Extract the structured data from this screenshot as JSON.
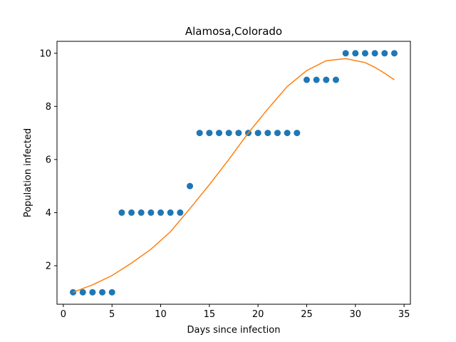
{
  "chart_data": {
    "type": "scatter",
    "title": "Alamosa,Colorado",
    "xlabel": "Days since infection",
    "ylabel": "Population infected",
    "xlim": [
      -0.65,
      35.65
    ],
    "ylim": [
      0.55,
      10.45
    ],
    "xticks": [
      0,
      5,
      10,
      15,
      20,
      25,
      30,
      35
    ],
    "yticks": [
      2,
      4,
      6,
      8,
      10
    ],
    "grid": false,
    "legend": "none",
    "series": [
      {
        "kind": "scatter",
        "color": "#1f77b4",
        "x": [
          1,
          2,
          3,
          4,
          5,
          6,
          7,
          8,
          9,
          10,
          11,
          12,
          13,
          14,
          15,
          16,
          17,
          18,
          19,
          20,
          21,
          22,
          23,
          24,
          25,
          26,
          27,
          28,
          29,
          30,
          31,
          32,
          33,
          34
        ],
        "y": [
          1,
          1,
          1,
          1,
          1,
          4,
          4,
          4,
          4,
          4,
          4,
          4,
          5,
          7,
          7,
          7,
          7,
          7,
          7,
          7,
          7,
          7,
          7,
          7,
          9,
          9,
          9,
          9,
          10,
          10,
          10,
          10,
          10,
          10
        ]
      },
      {
        "kind": "line",
        "color": "#ff7f0e",
        "x": [
          1,
          3,
          5,
          7,
          9,
          11,
          13,
          15,
          17,
          19,
          21,
          23,
          25,
          27,
          29,
          31,
          32,
          33,
          34
        ],
        "y": [
          1.0,
          1.28,
          1.63,
          2.1,
          2.62,
          3.28,
          4.15,
          5.05,
          6.0,
          7.0,
          7.9,
          8.75,
          9.35,
          9.72,
          9.8,
          9.65,
          9.47,
          9.25,
          9.0
        ]
      }
    ]
  }
}
